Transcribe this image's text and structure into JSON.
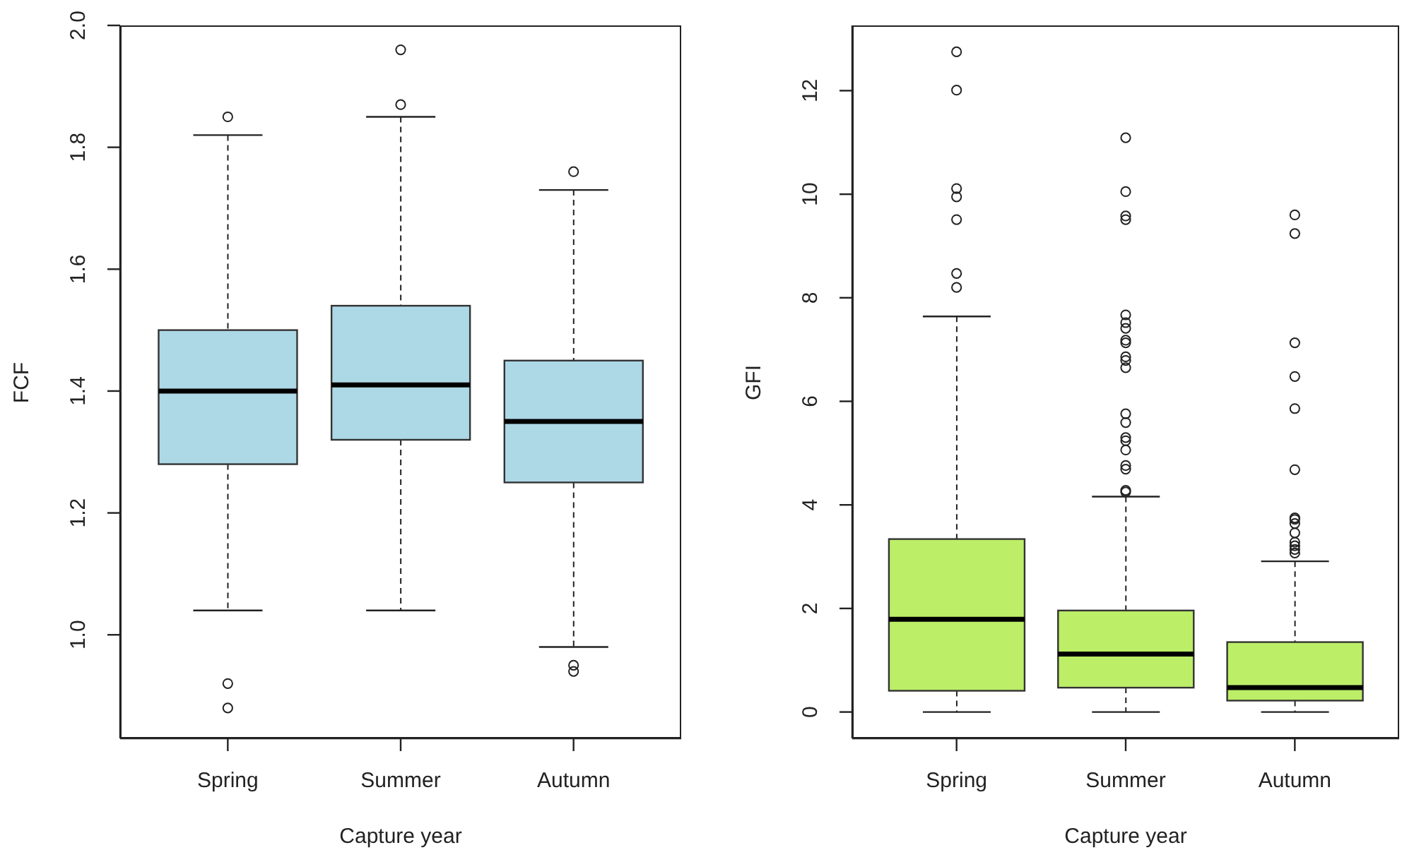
{
  "chart_data": [
    {
      "type": "box",
      "xlabel": "Capture year",
      "ylabel": "FCF",
      "categories": [
        "Spring",
        "Summer",
        "Autumn"
      ],
      "color": "#add8e6",
      "boxes": [
        {
          "low": 1.04,
          "q1": 1.28,
          "median": 1.4,
          "q3": 1.5,
          "high": 1.82,
          "outliers": [
            1.85,
            0.92,
            0.88
          ]
        },
        {
          "low": 1.04,
          "q1": 1.32,
          "median": 1.41,
          "q3": 1.54,
          "high": 1.85,
          "outliers": [
            1.96,
            1.87
          ]
        },
        {
          "low": 0.98,
          "q1": 1.25,
          "median": 1.35,
          "q3": 1.45,
          "high": 1.73,
          "outliers": [
            1.76,
            0.95,
            0.94
          ]
        }
      ],
      "ylim": [
        0.83,
        2.0
      ],
      "yticks": [
        {
          "value": 1.0,
          "label": "1.0"
        },
        1.2,
        1.4,
        1.6,
        1.8,
        {
          "value": 2.0,
          "label": "2.0"
        }
      ]
    },
    {
      "type": "box",
      "xlabel": "Capture year",
      "ylabel": "GFI",
      "categories": [
        "Spring",
        "Summer",
        "Autumn"
      ],
      "color": "#bcee68",
      "boxes": [
        {
          "low": 0,
          "q1": 0.41,
          "median": 1.79,
          "q3": 3.34,
          "high": 7.64,
          "outliers": [
            8.2,
            8.47,
            9.51,
            9.95,
            10.11,
            12.01,
            12.75
          ]
        },
        {
          "low": 0,
          "q1": 0.47,
          "median": 1.12,
          "q3": 1.96,
          "high": 4.16,
          "outliers": [
            4.25,
            4.28,
            4.69,
            4.76,
            5.06,
            5.24,
            5.3,
            5.59,
            5.76,
            6.65,
            6.79,
            6.86,
            7.13,
            7.18,
            7.41,
            7.52,
            7.67,
            9.51,
            9.58,
            10.05,
            11.09
          ]
        },
        {
          "low": 0,
          "q1": 0.22,
          "median": 0.47,
          "q3": 1.35,
          "high": 2.91,
          "outliers": [
            3.07,
            3.14,
            3.21,
            3.28,
            3.46,
            3.64,
            3.72,
            3.75,
            4.68,
            5.86,
            6.48,
            7.13,
            9.24,
            9.6
          ]
        }
      ],
      "ylim": [
        -0.51,
        13.26
      ],
      "yticks": [
        0,
        2,
        4,
        6,
        8,
        10,
        12
      ]
    }
  ]
}
